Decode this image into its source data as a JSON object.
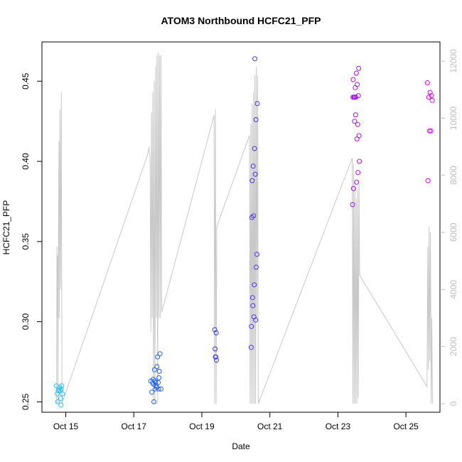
{
  "chart_data": {
    "type": "scatter",
    "title": "ATOM3 Northbound HCFC21_PFP",
    "xlabel": "Date",
    "ylabel": "HCFC21_PFP",
    "x_ticks": [
      "Oct 15",
      "Oct 17",
      "Oct 19",
      "Oct 21",
      "Oct 23",
      "Oct 25"
    ],
    "x_tick_days": [
      15,
      17,
      19,
      21,
      23,
      25
    ],
    "xlim": [
      14.3,
      26.0
    ],
    "ylim": [
      0.2435,
      0.4745
    ],
    "y_ticks": [
      0.25,
      0.3,
      0.35,
      0.4,
      0.45
    ],
    "y_tick_labels": [
      "0.25",
      "0.30",
      "0.35",
      "0.40",
      "0.45"
    ],
    "y2_ticks": [
      0,
      2000,
      4000,
      6000,
      8000,
      10000,
      12000
    ],
    "y2_tick_labels": [
      "0",
      "2000",
      "4000",
      "6000",
      "8000",
      "10000",
      "12000"
    ],
    "y2lim": [
      -300,
      12670
    ],
    "secondary_line_color": "#c8c8c8",
    "point_color_start": "#2ec4f0",
    "point_color_mid": "#1e40e6",
    "point_color_end": "#e600e6",
    "points": [
      {
        "x": 14.72,
        "y": 0.26
      },
      {
        "x": 14.75,
        "y": 0.255
      },
      {
        "x": 14.76,
        "y": 0.25
      },
      {
        "x": 14.78,
        "y": 0.257
      },
      {
        "x": 14.8,
        "y": 0.258
      },
      {
        "x": 14.82,
        "y": 0.259
      },
      {
        "x": 14.84,
        "y": 0.257
      },
      {
        "x": 14.85,
        "y": 0.252
      },
      {
        "x": 14.86,
        "y": 0.248
      },
      {
        "x": 14.87,
        "y": 0.258
      },
      {
        "x": 14.88,
        "y": 0.26
      },
      {
        "x": 14.9,
        "y": 0.255
      },
      {
        "x": 17.5,
        "y": 0.263
      },
      {
        "x": 17.53,
        "y": 0.256
      },
      {
        "x": 17.55,
        "y": 0.262
      },
      {
        "x": 17.57,
        "y": 0.264
      },
      {
        "x": 17.58,
        "y": 0.261
      },
      {
        "x": 17.59,
        "y": 0.25
      },
      {
        "x": 17.61,
        "y": 0.27
      },
      {
        "x": 17.62,
        "y": 0.263
      },
      {
        "x": 17.63,
        "y": 0.258
      },
      {
        "x": 17.64,
        "y": 0.262
      },
      {
        "x": 17.66,
        "y": 0.26
      },
      {
        "x": 17.67,
        "y": 0.259
      },
      {
        "x": 17.68,
        "y": 0.272
      },
      {
        "x": 17.7,
        "y": 0.278
      },
      {
        "x": 17.72,
        "y": 0.262
      },
      {
        "x": 17.73,
        "y": 0.258
      },
      {
        "x": 17.74,
        "y": 0.265
      },
      {
        "x": 17.75,
        "y": 0.269
      },
      {
        "x": 17.77,
        "y": 0.28
      },
      {
        "x": 17.8,
        "y": 0.258
      },
      {
        "x": 19.38,
        "y": 0.295
      },
      {
        "x": 19.39,
        "y": 0.283
      },
      {
        "x": 19.4,
        "y": 0.278
      },
      {
        "x": 19.41,
        "y": 0.278
      },
      {
        "x": 19.42,
        "y": 0.293
      },
      {
        "x": 19.43,
        "y": 0.276
      },
      {
        "x": 20.45,
        "y": 0.284
      },
      {
        "x": 20.46,
        "y": 0.297
      },
      {
        "x": 20.47,
        "y": 0.365
      },
      {
        "x": 20.48,
        "y": 0.388
      },
      {
        "x": 20.49,
        "y": 0.315
      },
      {
        "x": 20.5,
        "y": 0.31
      },
      {
        "x": 20.51,
        "y": 0.397
      },
      {
        "x": 20.52,
        "y": 0.366
      },
      {
        "x": 20.53,
        "y": 0.303
      },
      {
        "x": 20.54,
        "y": 0.323
      },
      {
        "x": 20.55,
        "y": 0.408
      },
      {
        "x": 20.56,
        "y": 0.464
      },
      {
        "x": 20.57,
        "y": 0.392
      },
      {
        "x": 20.58,
        "y": 0.301
      },
      {
        "x": 20.59,
        "y": 0.426
      },
      {
        "x": 20.6,
        "y": 0.334
      },
      {
        "x": 20.62,
        "y": 0.342
      },
      {
        "x": 20.63,
        "y": 0.436
      },
      {
        "x": 23.43,
        "y": 0.373
      },
      {
        "x": 23.44,
        "y": 0.44
      },
      {
        "x": 23.45,
        "y": 0.451
      },
      {
        "x": 23.46,
        "y": 0.383
      },
      {
        "x": 23.47,
        "y": 0.44
      },
      {
        "x": 23.48,
        "y": 0.44
      },
      {
        "x": 23.49,
        "y": 0.425
      },
      {
        "x": 23.5,
        "y": 0.44
      },
      {
        "x": 23.51,
        "y": 0.446
      },
      {
        "x": 23.52,
        "y": 0.429
      },
      {
        "x": 23.53,
        "y": 0.44
      },
      {
        "x": 23.54,
        "y": 0.455
      },
      {
        "x": 23.55,
        "y": 0.387
      },
      {
        "x": 23.56,
        "y": 0.414
      },
      {
        "x": 23.57,
        "y": 0.448
      },
      {
        "x": 23.58,
        "y": 0.423
      },
      {
        "x": 23.59,
        "y": 0.393
      },
      {
        "x": 23.6,
        "y": 0.441
      },
      {
        "x": 23.61,
        "y": 0.458
      },
      {
        "x": 23.62,
        "y": 0.416
      },
      {
        "x": 23.63,
        "y": 0.4
      },
      {
        "x": 25.63,
        "y": 0.449
      },
      {
        "x": 25.65,
        "y": 0.388
      },
      {
        "x": 25.67,
        "y": 0.44
      },
      {
        "x": 25.69,
        "y": 0.419
      },
      {
        "x": 25.71,
        "y": 0.443
      },
      {
        "x": 25.73,
        "y": 0.419
      },
      {
        "x": 25.75,
        "y": 0.441
      },
      {
        "x": 25.77,
        "y": 0.438
      }
    ],
    "altitude_line": [
      [
        14.73,
        0
      ],
      [
        14.74,
        5500
      ],
      [
        14.75,
        3000
      ],
      [
        14.76,
        5200
      ],
      [
        14.77,
        0
      ],
      [
        14.78,
        4000
      ],
      [
        14.8,
        9200
      ],
      [
        14.81,
        3000
      ],
      [
        14.83,
        10300
      ],
      [
        14.85,
        4000
      ],
      [
        14.87,
        10900
      ],
      [
        14.89,
        0
      ],
      [
        17.4,
        8700
      ],
      [
        17.45,
        9000
      ],
      [
        17.48,
        8500
      ],
      [
        17.5,
        2500
      ],
      [
        17.52,
        10200
      ],
      [
        17.54,
        3000
      ],
      [
        17.56,
        10900
      ],
      [
        17.58,
        0
      ],
      [
        17.6,
        11300
      ],
      [
        17.62,
        0
      ],
      [
        17.64,
        11800
      ],
      [
        17.66,
        3000
      ],
      [
        17.68,
        12200
      ],
      [
        17.7,
        0
      ],
      [
        17.72,
        12300
      ],
      [
        17.74,
        3000
      ],
      [
        17.76,
        12200
      ],
      [
        17.78,
        3000
      ],
      [
        17.8,
        12200
      ],
      [
        17.82,
        3200
      ],
      [
        19.36,
        10100
      ],
      [
        19.38,
        0
      ],
      [
        19.4,
        10300
      ],
      [
        19.42,
        0
      ],
      [
        19.44,
        6200
      ],
      [
        20.4,
        9400
      ],
      [
        20.42,
        0
      ],
      [
        20.44,
        9800
      ],
      [
        20.46,
        0
      ],
      [
        20.48,
        10500
      ],
      [
        20.5,
        0
      ],
      [
        20.52,
        10900
      ],
      [
        20.54,
        0
      ],
      [
        20.56,
        11500
      ],
      [
        20.58,
        0
      ],
      [
        20.6,
        11800
      ],
      [
        20.62,
        3000
      ],
      [
        20.64,
        11500
      ],
      [
        20.66,
        0
      ],
      [
        23.42,
        8600
      ],
      [
        23.44,
        0
      ],
      [
        23.46,
        8400
      ],
      [
        23.48,
        0
      ],
      [
        23.5,
        7800
      ],
      [
        23.52,
        0
      ],
      [
        23.54,
        7200
      ],
      [
        23.56,
        0
      ],
      [
        23.58,
        7500
      ],
      [
        23.6,
        200
      ],
      [
        23.62,
        7700
      ],
      [
        23.64,
        4500
      ],
      [
        25.62,
        600
      ],
      [
        25.64,
        5500
      ],
      [
        25.66,
        1200
      ],
      [
        25.68,
        6200
      ],
      [
        25.7,
        1500
      ],
      [
        25.72,
        6000
      ],
      [
        25.74,
        0
      ],
      [
        25.76,
        3000
      ],
      [
        25.78,
        0
      ]
    ]
  }
}
